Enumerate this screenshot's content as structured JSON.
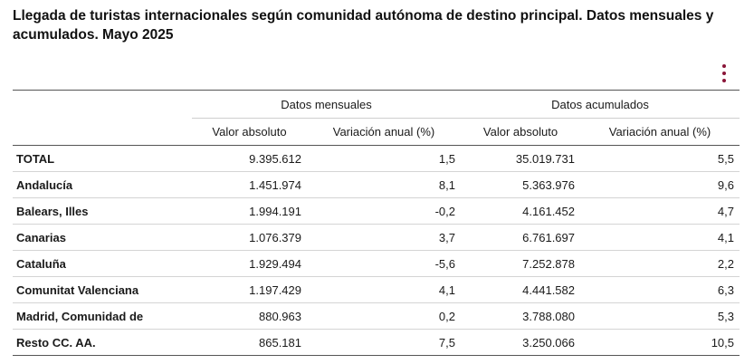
{
  "title": "Llegada de turistas internacionales según comunidad autónoma de destino principal. Datos mensuales y acumulados. Mayo 2025",
  "menu_icon": "vertical-dots-icon",
  "accent_color": "#8a1538",
  "table": {
    "group_headers": [
      "Datos mensuales",
      "Datos acumulados"
    ],
    "sub_headers": [
      "Valor absoluto",
      "Variación anual (%)",
      "Valor absoluto",
      "Variación anual (%)"
    ],
    "rows": [
      {
        "name": "TOTAL",
        "values": [
          "9.395.612",
          "1,5",
          "35.019.731",
          "5,5"
        ]
      },
      {
        "name": "Andalucía",
        "values": [
          "1.451.974",
          "8,1",
          "5.363.976",
          "9,6"
        ]
      },
      {
        "name": "Balears, Illes",
        "values": [
          "1.994.191",
          "-0,2",
          "4.161.452",
          "4,7"
        ]
      },
      {
        "name": "Canarias",
        "values": [
          "1.076.379",
          "3,7",
          "6.761.697",
          "4,1"
        ]
      },
      {
        "name": "Cataluña",
        "values": [
          "1.929.494",
          "-5,6",
          "7.252.878",
          "2,2"
        ]
      },
      {
        "name": "Comunitat Valenciana",
        "values": [
          "1.197.429",
          "4,1",
          "4.441.582",
          "6,3"
        ]
      },
      {
        "name": "Madrid, Comunidad de",
        "values": [
          "880.963",
          "0,2",
          "3.788.080",
          "5,3"
        ]
      },
      {
        "name": "Resto CC. AA.",
        "values": [
          "865.181",
          "7,5",
          "3.250.066",
          "10,5"
        ]
      }
    ]
  }
}
